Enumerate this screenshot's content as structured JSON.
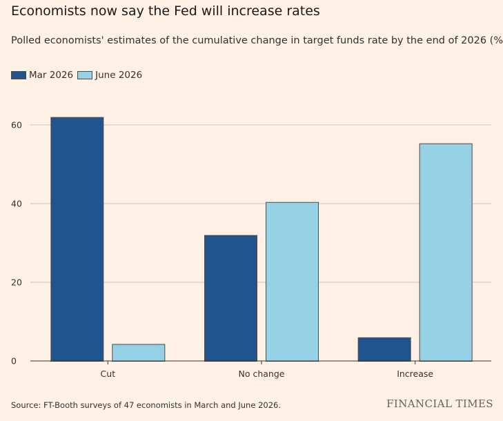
{
  "title": "Economists now say the Fed will increase rates",
  "subtitle": "Polled economists' estimates of the cumulative change in target funds rate by the end of 2026 (%)",
  "source": "Source: FT-Booth surveys of 47 economists in March and June 2026.",
  "brand": "FINANCIAL TIMES",
  "colors": {
    "background": "#FFF1E5",
    "mar_2026": "#1F548C",
    "june_2026": "#96D2E6",
    "bar_outline": "#4D4A48",
    "grid": "#CCC1B7"
  },
  "chart_data": {
    "type": "bar",
    "categories": [
      "Cut",
      "No change",
      "Increase"
    ],
    "series": [
      {
        "name": "Mar 2026",
        "values": [
          62,
          32,
          6
        ]
      },
      {
        "name": "June 2026",
        "values": [
          4.3,
          40.4,
          55.3
        ]
      }
    ],
    "ylim": [
      0,
      60
    ],
    "yticks": [
      0,
      20,
      40,
      60
    ],
    "legend_position": "top-left",
    "grid": true
  }
}
